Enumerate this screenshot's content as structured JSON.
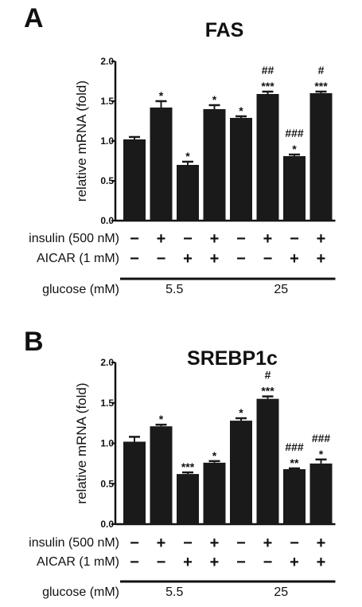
{
  "chart_data": [
    {
      "type": "bar",
      "panel": "A",
      "title": "FAS",
      "ylabel": "relative mRNA (fold)",
      "ylim": [
        0,
        2.0
      ],
      "yticks": [
        "0.0",
        "0.5",
        "1.0",
        "1.5",
        "2.0"
      ],
      "values": [
        1.02,
        1.42,
        0.7,
        1.4,
        1.29,
        1.59,
        0.81,
        1.6
      ],
      "errors": [
        0.03,
        0.08,
        0.04,
        0.05,
        0.02,
        0.03,
        0.02,
        0.02
      ],
      "significance": [
        "",
        "*",
        "*",
        "*",
        "*",
        "##\n***",
        "###\n*",
        "#\n***"
      ],
      "conditions": {
        "rows": [
          {
            "label": "insulin (500 nM)",
            "signs": [
              "−",
              "+",
              "−",
              "+",
              "−",
              "+",
              "−",
              "+"
            ]
          },
          {
            "label": "AICAR (1 mM)",
            "signs": [
              "−",
              "−",
              "+",
              "+",
              "−",
              "−",
              "+",
              "+"
            ]
          }
        ],
        "group_row_label": "glucose (mM)",
        "groups": [
          {
            "label": "5.5",
            "span": [
              0,
              3
            ]
          },
          {
            "label": "25",
            "span": [
              4,
              7
            ]
          }
        ]
      }
    },
    {
      "type": "bar",
      "panel": "B",
      "title": "SREBP1c",
      "ylabel": "relative mRNA (fold)",
      "ylim": [
        0,
        2.0
      ],
      "yticks": [
        "0.0",
        "0.5",
        "1.0",
        "1.5",
        "2.0"
      ],
      "values": [
        1.02,
        1.21,
        0.62,
        0.76,
        1.28,
        1.55,
        0.68,
        0.75
      ],
      "errors": [
        0.06,
        0.02,
        0.02,
        0.02,
        0.03,
        0.03,
        0.01,
        0.05
      ],
      "significance": [
        "",
        "*",
        "***",
        "*",
        "*",
        "#\n***",
        "###\n**",
        "###\n*"
      ],
      "conditions": {
        "rows": [
          {
            "label": "insulin (500 nM)",
            "signs": [
              "−",
              "+",
              "−",
              "+",
              "−",
              "+",
              "−",
              "+"
            ]
          },
          {
            "label": "AICAR (1 mM)",
            "signs": [
              "−",
              "−",
              "+",
              "+",
              "−",
              "−",
              "+",
              "+"
            ]
          }
        ],
        "group_row_label": "glucose (mM)",
        "groups": [
          {
            "label": "5.5",
            "span": [
              0,
              3
            ]
          },
          {
            "label": "25",
            "span": [
              4,
              7
            ]
          }
        ]
      }
    }
  ]
}
